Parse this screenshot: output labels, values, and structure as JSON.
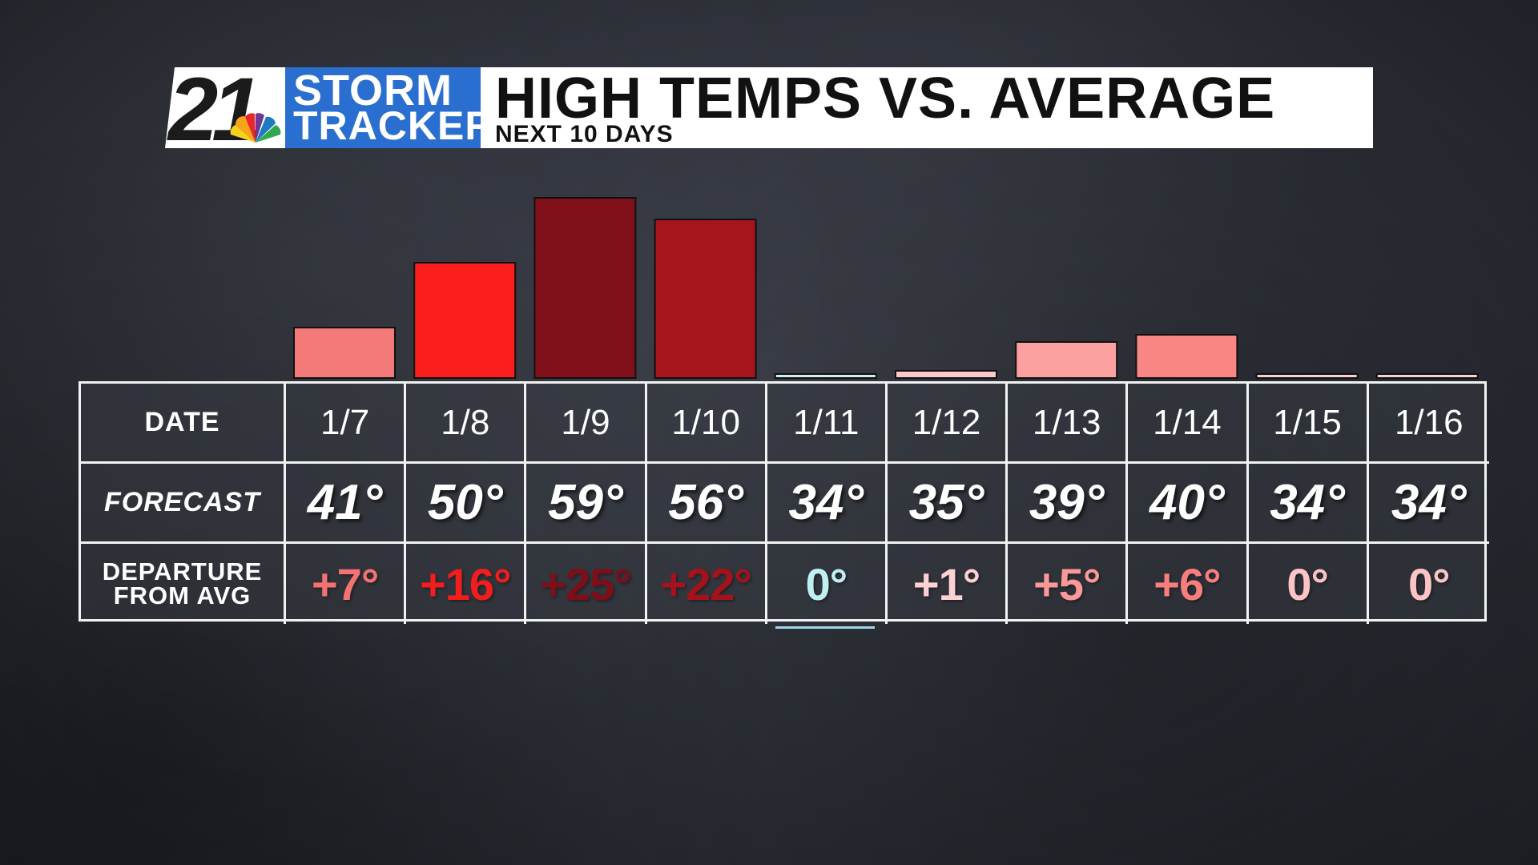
{
  "header": {
    "logo_number": "21",
    "logo_line1": "STORM",
    "logo_line2": "TRACKER",
    "title": "HIGH TEMPS VS. AVERAGE",
    "subtitle": "NEXT 10 DAYS",
    "colors": {
      "logo_blue": "#2a6fd0",
      "title_bg": "#ffffff"
    }
  },
  "table": {
    "row_labels": {
      "date": "DATE",
      "forecast": "FORECAST",
      "departure_line1": "DEPARTURE",
      "departure_line2": "FROM AVG"
    },
    "dates": [
      "1/7",
      "1/8",
      "1/9",
      "1/10",
      "1/11",
      "1/12",
      "1/13",
      "1/14",
      "1/15",
      "1/16"
    ],
    "forecast": [
      "41°",
      "50°",
      "59°",
      "56°",
      "34°",
      "35°",
      "39°",
      "40°",
      "34°",
      "34°"
    ],
    "departure": [
      "+7°",
      "+16°",
      "+25°",
      "+22°",
      "0°",
      "+1°",
      "+5°",
      "+6°",
      "0°",
      "0°"
    ],
    "departure_colors": [
      "#f47272",
      "#f21d1d",
      "#7e0e18",
      "#a5121c",
      "#bff0f2",
      "#fcd2d2",
      "#fb9898",
      "#f87e7e",
      "#fcc4c4",
      "#fcc4c4"
    ]
  },
  "chart_data": {
    "type": "bar",
    "categories": [
      "1/7",
      "1/8",
      "1/9",
      "1/10",
      "1/11",
      "1/12",
      "1/13",
      "1/14",
      "1/15",
      "1/16"
    ],
    "values": [
      7,
      16,
      25,
      22,
      0,
      1,
      5,
      6,
      0,
      0
    ],
    "ylim": [
      0,
      25
    ],
    "colors": [
      "#f47a7a",
      "#fb1c1c",
      "#7f0f18",
      "#a6141c",
      "#cfeef2",
      "#fbc9c9",
      "#fca0a0",
      "#f98585",
      "#f6d0d0",
      "#f6d0d0"
    ]
  }
}
